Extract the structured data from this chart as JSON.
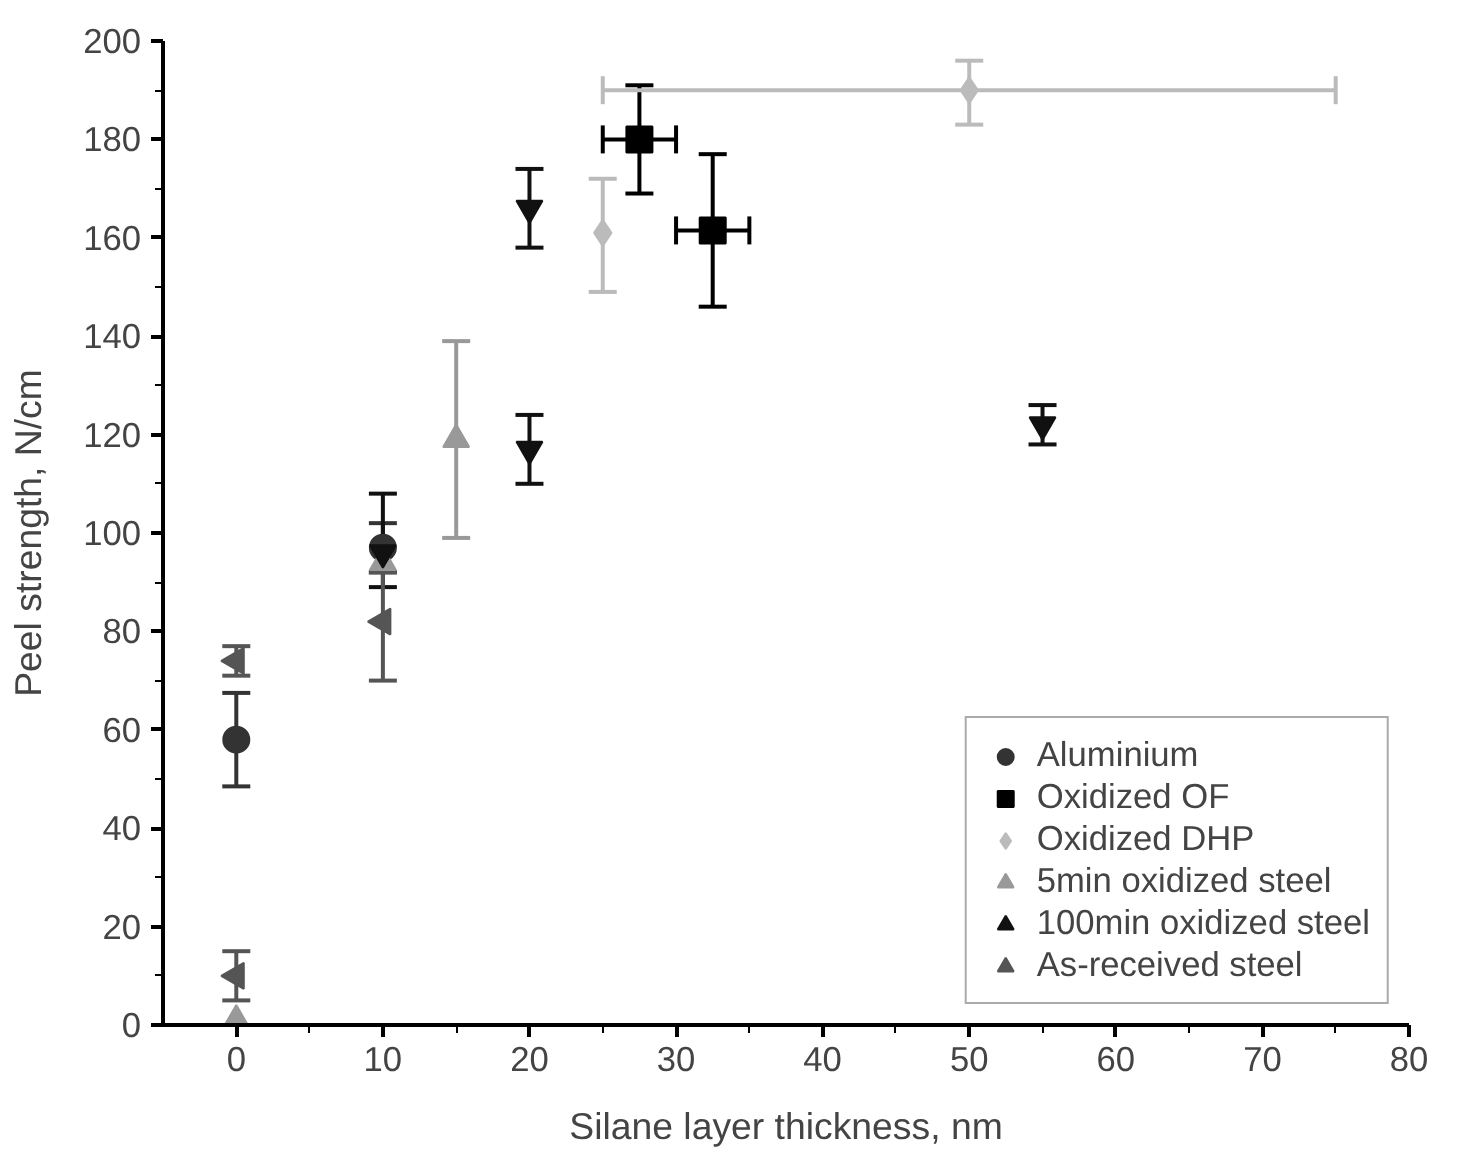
{
  "chart_data": {
    "type": "scatter",
    "xlabel": "Silane layer thickness, nm",
    "ylabel": "Peel strength, N/cm",
    "xlim": [
      -5,
      80
    ],
    "xticks": [
      0,
      10,
      20,
      30,
      40,
      50,
      60,
      70,
      80
    ],
    "ylim": [
      0,
      200
    ],
    "yticks": [
      0,
      20,
      40,
      60,
      80,
      100,
      120,
      140,
      160,
      180,
      200
    ],
    "grid": false,
    "legend": "bottom right",
    "series": [
      {
        "name": "Aluminium",
        "color": "#333333",
        "marker": "circle",
        "x": [
          0,
          10
        ],
        "values": [
          58,
          97
        ],
        "errors": [
          [
            48.5,
            67.5
          ],
          [
            92,
            102
          ]
        ]
      },
      {
        "name": "Oxidized OF",
        "color": "#000000",
        "marker": "square",
        "x": [
          27.5,
          32.5
        ],
        "values": [
          180,
          161.5
        ],
        "errors": [
          [
            169,
            191
          ],
          [
            146,
            177
          ]
        ],
        "xerrors": [
          2.5,
          2.5
        ]
      },
      {
        "name": "Oxidized DHP",
        "color": "#bbbbbb",
        "marker": "diamond",
        "x": [
          25,
          50
        ],
        "values": [
          161,
          190
        ],
        "errors": [
          [
            149,
            172
          ],
          [
            183,
            196
          ]
        ],
        "xerrors": [
          null,
          [
            25,
            75
          ]
        ]
      },
      {
        "name": "5min oxidized steel",
        "color": "#999999",
        "marker": "triangle",
        "x": [
          0,
          10,
          15
        ],
        "values": [
          1,
          94,
          119
        ],
        "errors": [
          null,
          null,
          [
            99,
            139
          ]
        ]
      },
      {
        "name": "100min oxidized steel",
        "color": "#111111",
        "marker": "triangle",
        "x": [
          10,
          20,
          20,
          55
        ],
        "values": [
          96,
          166,
          117,
          122
        ],
        "errors": [
          [
            89,
            108
          ],
          [
            158,
            174
          ],
          [
            110,
            124
          ],
          [
            118,
            126
          ]
        ]
      },
      {
        "name": "As-received steel",
        "color": "#555555",
        "marker": "triangle",
        "x": [
          0,
          0,
          10
        ],
        "values": [
          74,
          10,
          82
        ],
        "errors": [
          [
            71,
            77
          ],
          [
            5,
            15
          ],
          [
            70,
            92
          ]
        ]
      }
    ]
  }
}
